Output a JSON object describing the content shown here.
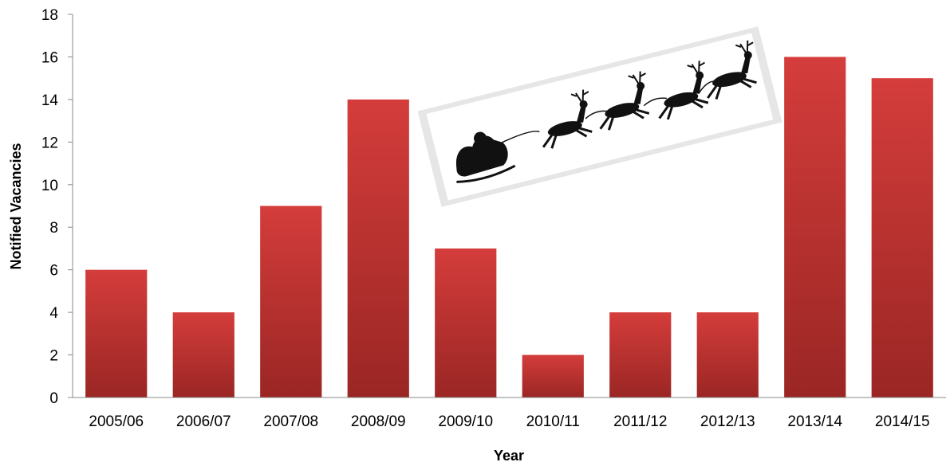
{
  "chart_data": {
    "type": "bar",
    "categories": [
      "2005/06",
      "2006/07",
      "2007/08",
      "2008/09",
      "2009/10",
      "2010/11",
      "2011/12",
      "2012/13",
      "2013/14",
      "2014/15"
    ],
    "values": [
      6,
      4,
      9,
      14,
      7,
      2,
      4,
      4,
      16,
      15
    ],
    "xlabel": "Year",
    "ylabel": "Notified Vacancies",
    "ylim": [
      0,
      18
    ],
    "yticks": [
      0,
      2,
      4,
      6,
      8,
      10,
      12,
      14,
      16,
      18
    ],
    "grid": false,
    "legend": "none",
    "bar_color_top": "#d43d3b",
    "bar_color_bottom": "#9a2624",
    "decoration_icon": "santa-sleigh-reindeer-silhouette"
  }
}
